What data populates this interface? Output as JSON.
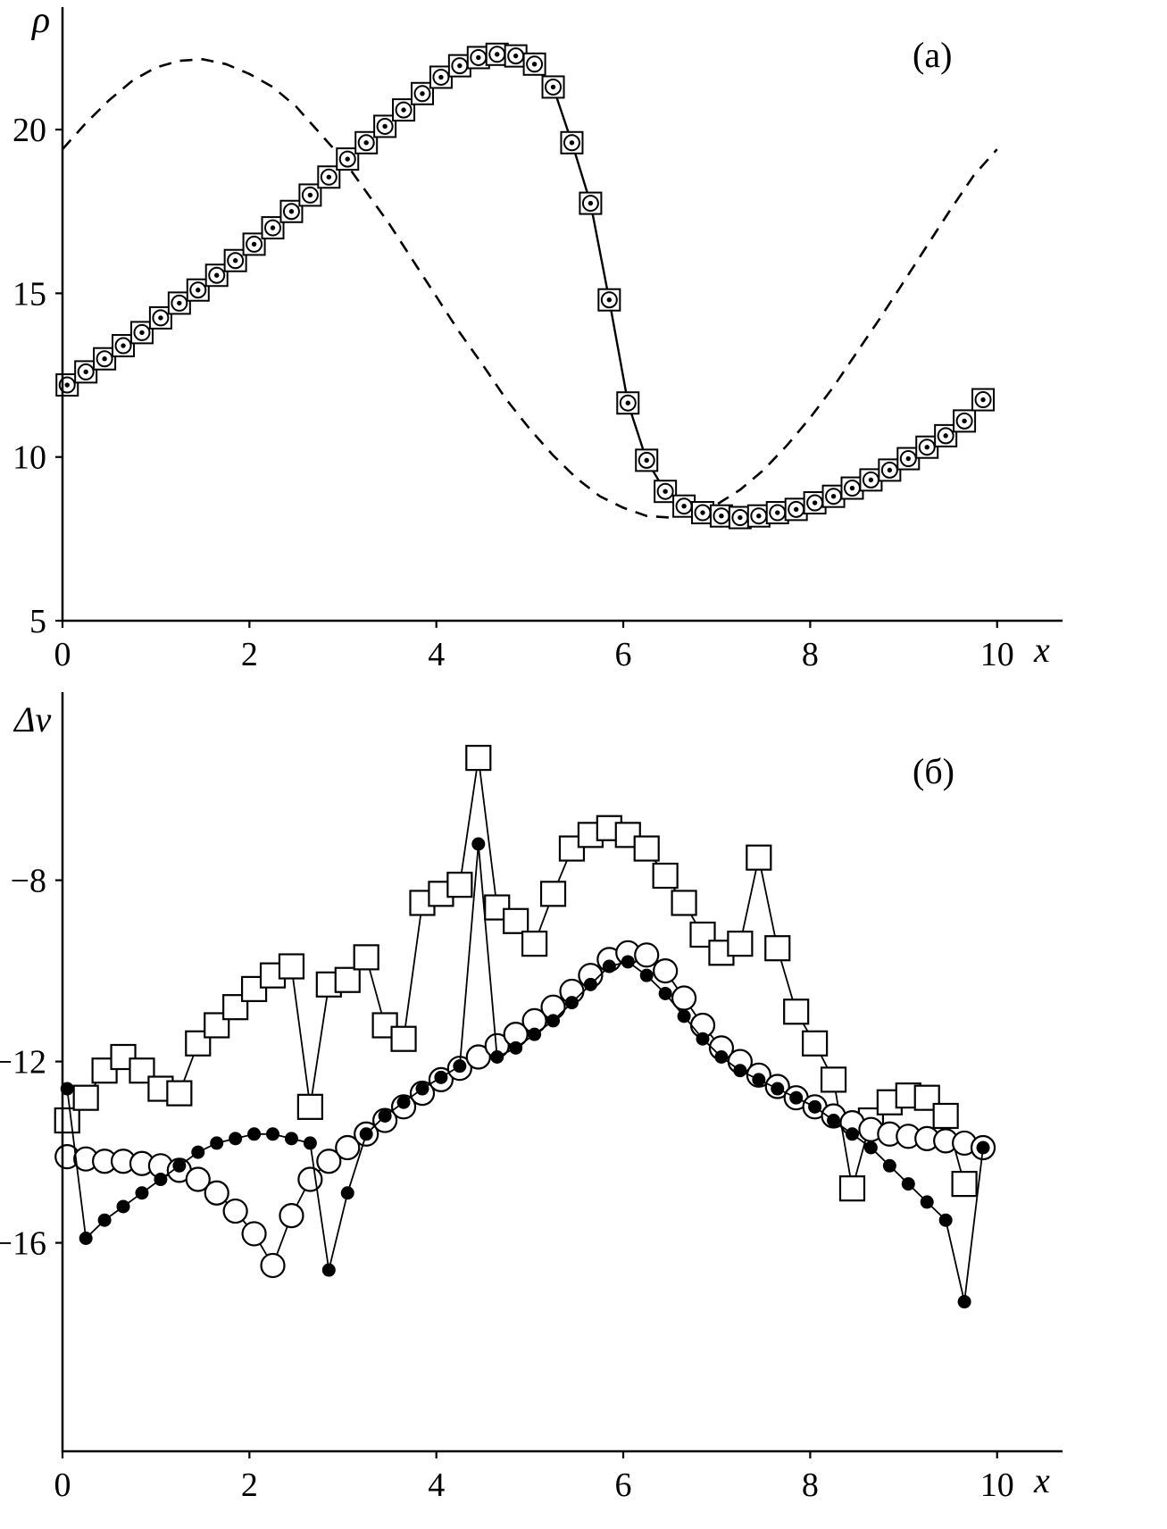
{
  "figure": {
    "panel_a": {
      "corner_label": "(а)",
      "ylabel": "ρ",
      "xlabel": "x"
    },
    "panel_b": {
      "corner_label": "(б)",
      "ylabel": "Δv",
      "xlabel": "x"
    }
  },
  "colors": {
    "ink": "#000000",
    "background": "#ffffff"
  },
  "chart_data": [
    {
      "id": "a",
      "type": "line",
      "title": "",
      "ylabel": "ρ",
      "xlabel": "x",
      "corner_label": "(а)",
      "grid": false,
      "legend": "none",
      "xlim": [
        0,
        10.7
      ],
      "ylim": [
        5,
        23.74
      ],
      "xticks": [
        {
          "v": 0,
          "label": "0"
        },
        {
          "v": 2,
          "label": "2"
        },
        {
          "v": 4,
          "label": "4"
        },
        {
          "v": 6,
          "label": "6"
        },
        {
          "v": 8,
          "label": "8"
        },
        {
          "v": 10,
          "label": "10"
        }
      ],
      "yticks": [
        {
          "v": 5,
          "label": "5"
        },
        {
          "v": 10,
          "label": "10"
        },
        {
          "v": 15,
          "label": "15"
        },
        {
          "v": 20,
          "label": "20"
        }
      ],
      "series": [
        {
          "name": "initial-density-dashed",
          "line": "dashed",
          "marker": "none",
          "x": [
            0,
            0.25,
            0.5,
            0.75,
            1,
            1.25,
            1.5,
            1.75,
            2,
            2.25,
            2.5,
            2.75,
            3,
            3.25,
            3.5,
            3.75,
            4,
            4.25,
            4.5,
            4.75,
            5,
            5.25,
            5.5,
            5.75,
            6,
            6.25,
            6.5,
            6.75,
            7,
            7.25,
            7.5,
            7.75,
            8,
            8.25,
            8.5,
            8.75,
            9,
            9.25,
            9.5,
            9.75,
            10
          ],
          "y": [
            19.4,
            20.2,
            20.9,
            21.5,
            21.9,
            22.1,
            22.15,
            22.0,
            21.7,
            21.3,
            20.7,
            19.9,
            19.1,
            18.1,
            17.1,
            16.0,
            14.9,
            13.8,
            12.8,
            11.75,
            10.85,
            10.05,
            9.35,
            8.8,
            8.45,
            8.2,
            8.15,
            8.25,
            8.55,
            9.0,
            9.6,
            10.35,
            11.2,
            12.15,
            13.2,
            14.25,
            15.35,
            16.45,
            17.55,
            18.6,
            19.4
          ]
        },
        {
          "name": "numerical-density-markers",
          "line": "solid",
          "marker": "square-circle-dot",
          "x": [
            0.05,
            0.25,
            0.45,
            0.65,
            0.85,
            1.05,
            1.25,
            1.45,
            1.65,
            1.85,
            2.05,
            2.25,
            2.45,
            2.65,
            2.85,
            3.05,
            3.25,
            3.45,
            3.65,
            3.85,
            4.05,
            4.25,
            4.45,
            4.65,
            4.85,
            5.05,
            5.25,
            5.45,
            5.65,
            5.85,
            6.05,
            6.25,
            6.45,
            6.65,
            6.85,
            7.05,
            7.25,
            7.45,
            7.65,
            7.85,
            8.05,
            8.25,
            8.45,
            8.65,
            8.85,
            9.05,
            9.25,
            9.45,
            9.65,
            9.85
          ],
          "y": [
            12.2,
            12.6,
            13.0,
            13.4,
            13.8,
            14.25,
            14.7,
            15.1,
            15.55,
            16.0,
            16.5,
            17.0,
            17.5,
            18.0,
            18.55,
            19.1,
            19.6,
            20.1,
            20.6,
            21.1,
            21.6,
            21.95,
            22.2,
            22.3,
            22.25,
            22.0,
            21.3,
            19.6,
            17.75,
            14.8,
            11.65,
            9.9,
            8.95,
            8.5,
            8.3,
            8.2,
            8.15,
            8.2,
            8.3,
            8.4,
            8.6,
            8.8,
            9.05,
            9.3,
            9.6,
            9.95,
            10.3,
            10.65,
            11.1,
            11.75
          ]
        }
      ]
    },
    {
      "id": "b",
      "type": "line",
      "title": "",
      "ylabel": "Δv",
      "xlabel": "x",
      "corner_label": "(б)",
      "grid": false,
      "legend": "none",
      "xlim": [
        0,
        10.7
      ],
      "ylim": [
        -20.6,
        -3.85
      ],
      "xticks": [
        {
          "v": 0,
          "label": "0"
        },
        {
          "v": 2,
          "label": "2"
        },
        {
          "v": 4,
          "label": "4"
        },
        {
          "v": 6,
          "label": "6"
        },
        {
          "v": 8,
          "label": "8"
        },
        {
          "v": 10,
          "label": "10"
        }
      ],
      "yticks": [
        {
          "v": -8,
          "label": "−8"
        },
        {
          "v": -12,
          "label": "−12"
        },
        {
          "v": -16,
          "label": "−16"
        }
      ],
      "series": [
        {
          "name": "velocity-error-open-squares",
          "line": "solid",
          "marker": "open-square",
          "x": [
            0.05,
            0.25,
            0.45,
            0.65,
            0.85,
            1.05,
            1.25,
            1.45,
            1.65,
            1.85,
            2.05,
            2.25,
            2.45,
            2.65,
            2.85,
            3.05,
            3.25,
            3.45,
            3.65,
            3.85,
            4.05,
            4.25,
            4.45,
            4.65,
            4.85,
            5.05,
            5.25,
            5.45,
            5.65,
            5.85,
            6.05,
            6.25,
            6.45,
            6.65,
            6.85,
            7.05,
            7.25,
            7.45,
            7.65,
            7.85,
            8.05,
            8.25,
            8.45,
            8.65,
            8.85,
            9.05,
            9.25,
            9.45,
            9.65
          ],
          "y": [
            -13.3,
            -12.8,
            -12.2,
            -11.9,
            -12.2,
            -12.6,
            -12.7,
            -11.6,
            -11.2,
            -10.8,
            -10.4,
            -10.1,
            -9.9,
            -13.0,
            -10.3,
            -10.2,
            -9.7,
            -11.2,
            -11.5,
            -8.5,
            -8.3,
            -8.1,
            -5.3,
            -8.6,
            -8.9,
            -9.4,
            -8.3,
            -7.3,
            -7.0,
            -6.85,
            -7.0,
            -7.3,
            -7.9,
            -8.5,
            -9.2,
            -9.6,
            -9.4,
            -7.5,
            -9.5,
            -10.9,
            -11.6,
            -12.4,
            -14.8,
            -13.3,
            -12.9,
            -12.75,
            -12.8,
            -13.2,
            -14.7
          ]
        },
        {
          "name": "velocity-error-open-circles",
          "line": "solid",
          "marker": "open-circle",
          "x": [
            0.05,
            0.25,
            0.45,
            0.65,
            0.85,
            1.05,
            1.25,
            1.45,
            1.65,
            1.85,
            2.05,
            2.25,
            2.45,
            2.65,
            2.85,
            3.05,
            3.25,
            3.45,
            3.65,
            3.85,
            4.05,
            4.25,
            4.45,
            4.65,
            4.85,
            5.05,
            5.25,
            5.45,
            5.65,
            5.85,
            6.05,
            6.25,
            6.45,
            6.65,
            6.85,
            7.05,
            7.25,
            7.45,
            7.65,
            7.85,
            8.05,
            8.25,
            8.45,
            8.65,
            8.85,
            9.05,
            9.25,
            9.45,
            9.65,
            9.85
          ],
          "y": [
            -14.1,
            -14.15,
            -14.2,
            -14.2,
            -14.25,
            -14.3,
            -14.4,
            -14.6,
            -14.9,
            -15.3,
            -15.8,
            -16.5,
            -15.4,
            -14.6,
            -14.2,
            -13.9,
            -13.6,
            -13.3,
            -13.0,
            -12.7,
            -12.4,
            -12.15,
            -11.9,
            -11.65,
            -11.4,
            -11.1,
            -10.8,
            -10.45,
            -10.1,
            -9.75,
            -9.6,
            -9.65,
            -10.0,
            -10.6,
            -11.2,
            -11.7,
            -12.0,
            -12.3,
            -12.55,
            -12.8,
            -13.0,
            -13.2,
            -13.35,
            -13.5,
            -13.6,
            -13.65,
            -13.7,
            -13.75,
            -13.8,
            -13.9
          ]
        },
        {
          "name": "velocity-error-filled-circles",
          "line": "solid",
          "marker": "filled-circle",
          "x": [
            0.05,
            0.25,
            0.45,
            0.65,
            0.85,
            1.05,
            1.25,
            1.45,
            1.65,
            1.85,
            2.05,
            2.25,
            2.45,
            2.65,
            2.85,
            3.05,
            3.25,
            3.45,
            3.65,
            3.85,
            4.05,
            4.25,
            4.45,
            4.65,
            4.85,
            5.05,
            5.25,
            5.45,
            5.65,
            5.85,
            6.05,
            6.25,
            6.45,
            6.65,
            6.85,
            7.05,
            7.25,
            7.45,
            7.65,
            7.85,
            8.05,
            8.25,
            8.45,
            8.65,
            8.85,
            9.05,
            9.25,
            9.45,
            9.65,
            9.85
          ],
          "y": [
            -12.6,
            -15.9,
            -15.5,
            -15.2,
            -14.9,
            -14.6,
            -14.3,
            -14.0,
            -13.8,
            -13.7,
            -13.6,
            -13.6,
            -13.7,
            -13.8,
            -16.6,
            -14.9,
            -13.6,
            -13.2,
            -12.9,
            -12.6,
            -12.35,
            -12.1,
            -7.2,
            -11.9,
            -11.7,
            -11.4,
            -11.1,
            -10.7,
            -10.3,
            -9.9,
            -9.8,
            -10.1,
            -10.5,
            -11.0,
            -11.5,
            -11.9,
            -12.2,
            -12.4,
            -12.6,
            -12.8,
            -13.0,
            -13.3,
            -13.6,
            -13.9,
            -14.3,
            -14.7,
            -15.1,
            -15.5,
            -17.3,
            -13.9
          ]
        }
      ]
    }
  ]
}
